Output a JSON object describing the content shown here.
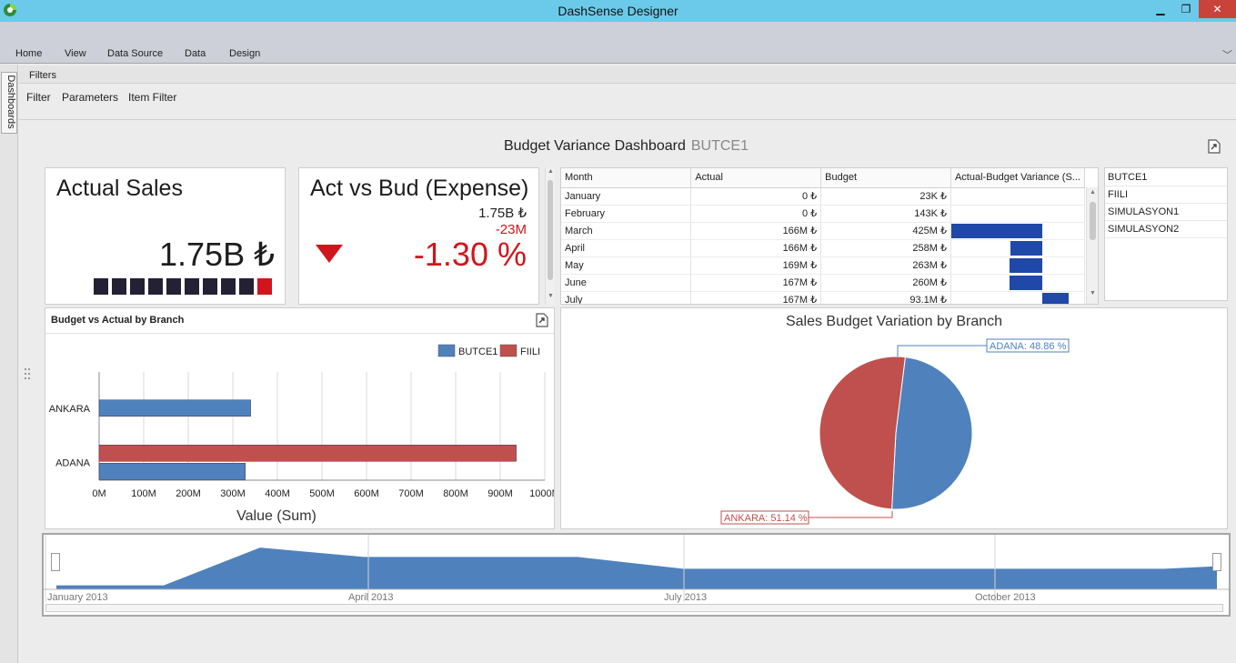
{
  "window": {
    "title": "DashSense Designer",
    "min": "▁",
    "max": "❐",
    "close": "✕"
  },
  "ribbon": {
    "tabs": [
      "Home",
      "View",
      "Data Source",
      "Data",
      "Design"
    ],
    "collapse": "﹀"
  },
  "dock": {
    "label": "Dashboards"
  },
  "filters": {
    "title": "Filters",
    "links": [
      "Filter",
      "Parameters",
      "Item Filter"
    ]
  },
  "dashboard": {
    "title": "Budget Variance Dashboard",
    "subtitle": "BUTCE1"
  },
  "kpi_actual": {
    "title": "Actual Sales",
    "value": "1.75B ₺",
    "spark_count": 10
  },
  "kpi_actbud": {
    "title": "Act vs Bud (Expense)",
    "actual": "1.75B ₺",
    "diff": "-23M",
    "percent": "-1.30 %",
    "indicator": "down-triangle"
  },
  "grid": {
    "columns": [
      "Month",
      "Actual",
      "Budget",
      "Actual-Budget Variance (S..."
    ],
    "rows": [
      {
        "month": "January",
        "actual": "0 ₺",
        "budget": "23K ₺",
        "variance": -0.0001
      },
      {
        "month": "February",
        "actual": "0 ₺",
        "budget": "143K ₺",
        "variance": -0.0009
      },
      {
        "month": "March",
        "actual": "166M ₺",
        "budget": "425M ₺",
        "variance": -1.0
      },
      {
        "month": "April",
        "actual": "166M ₺",
        "budget": "258M ₺",
        "variance": -0.35
      },
      {
        "month": "May",
        "actual": "169M ₺",
        "budget": "263M ₺",
        "variance": -0.36
      },
      {
        "month": "June",
        "actual": "167M ₺",
        "budget": "260M ₺",
        "variance": -0.36
      },
      {
        "month": "July",
        "actual": "167M ₺",
        "budget": "93.1M ₺",
        "variance": 0.29
      }
    ]
  },
  "list": {
    "items": [
      "BUTCE1",
      "FIILI",
      "SIMULASYON1",
      "SIMULASYON2"
    ]
  },
  "bar_panel": {
    "title": "Budget vs Actual by Branch"
  },
  "pie_panel": {
    "title": "Sales Budget Variation by Branch"
  },
  "colors": {
    "blue": "#4f81bd",
    "red": "#c0504d",
    "kpi_red": "#d0161c",
    "grid_bar": "#1f48a8"
  },
  "chart_data": [
    {
      "type": "bar",
      "orientation": "horizontal",
      "categories": [
        "ANKARA",
        "ADANA"
      ],
      "series": [
        {
          "name": "BUTCE1",
          "values": [
            340,
            328
          ]
        },
        {
          "name": "FIILI",
          "values": [
            0,
            936
          ]
        }
      ],
      "xlabel": "Value (Sum)",
      "xlim": [
        0,
        1000
      ],
      "ticks": [
        "0M",
        "100M",
        "200M",
        "300M",
        "400M",
        "500M",
        "600M",
        "700M",
        "800M",
        "900M",
        "1000M"
      ],
      "legend": "top-right",
      "grid": true
    },
    {
      "type": "pie",
      "title": "Sales Budget Variation by Branch",
      "slices": [
        {
          "label": "ADANA: 48.86 %",
          "value": 48.86
        },
        {
          "label": "ANKARA: 51.14 %",
          "value": 51.14
        }
      ]
    },
    {
      "type": "area",
      "x_labels": [
        "January 2013",
        "April 2013",
        "July 2013",
        "October 2013"
      ],
      "values": [
        0.08,
        0.08,
        0.85,
        0.66,
        0.66,
        0.42,
        0.42,
        0.42,
        0.47
      ]
    }
  ]
}
